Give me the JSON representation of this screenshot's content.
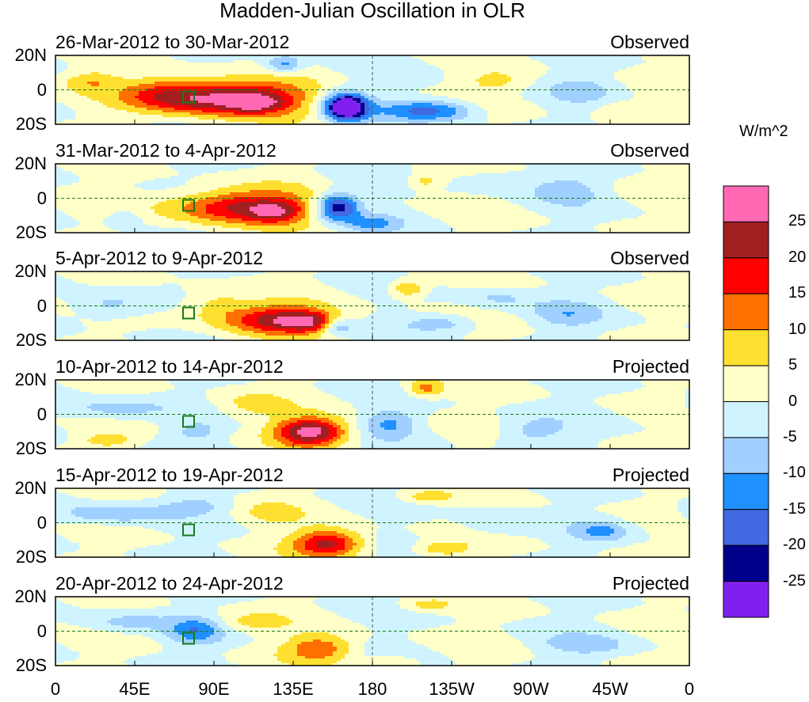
{
  "chart_data": {
    "type": "heatmap",
    "title": "Madden-Julian Oscillation in OLR",
    "units": "W/m^2",
    "xlabel": "",
    "ylabel": "",
    "x_ticks": [
      "0",
      "45E",
      "90E",
      "135E",
      "180",
      "135W",
      "90W",
      "45W",
      "0"
    ],
    "y_ticks": [
      "20N",
      "0",
      "20S"
    ],
    "xlim": [
      0,
      360
    ],
    "ylim": [
      -20,
      20
    ],
    "levels": [
      -25,
      -20,
      -15,
      -10,
      -5,
      0,
      5,
      10,
      15,
      20,
      25
    ],
    "colorbar_labels": [
      "25",
      "20",
      "15",
      "10",
      "5",
      "0",
      "-5",
      "-10",
      "-15",
      "-20",
      "-25"
    ],
    "colors": [
      "#8020F0",
      "#00008B",
      "#4169E1",
      "#1E90FF",
      "#A0D0FF",
      "#D0F4FF",
      "#FFFFC8",
      "#FFE030",
      "#FF7000",
      "#FF0000",
      "#A02020",
      "#FF69B4"
    ],
    "panels": [
      {
        "dates": "26-Mar-2012 to 30-Mar-2012",
        "status": "Observed",
        "anomalies": [
          [
            100,
            -5,
            28,
            40,
            10
          ],
          [
            115,
            -8,
            10,
            15,
            5
          ],
          [
            60,
            -2,
            12,
            25,
            10
          ],
          [
            165,
            -10,
            -38,
            12,
            8
          ],
          [
            130,
            15,
            -12,
            10,
            5
          ],
          [
            220,
            -12,
            -12,
            20,
            6
          ],
          [
            200,
            -12,
            -8,
            20,
            6
          ],
          [
            250,
            5,
            6,
            20,
            6
          ],
          [
            300,
            0,
            -6,
            20,
            8
          ],
          [
            320,
            -10,
            4,
            15,
            5
          ],
          [
            20,
            5,
            8,
            15,
            6
          ]
        ]
      },
      {
        "dates": "31-Mar-2012 to 4-Apr-2012",
        "status": "Observed",
        "anomalies": [
          [
            105,
            -5,
            22,
            40,
            10
          ],
          [
            125,
            -8,
            12,
            15,
            6
          ],
          [
            160,
            -5,
            -25,
            12,
            8
          ],
          [
            210,
            10,
            8,
            10,
            5
          ],
          [
            290,
            5,
            -7,
            20,
            8
          ],
          [
            40,
            -10,
            -5,
            12,
            6
          ],
          [
            180,
            -15,
            -10,
            15,
            5
          ],
          [
            250,
            10,
            -6,
            20,
            6
          ]
        ]
      },
      {
        "dates": "5-Apr-2012 to 9-Apr-2012",
        "status": "Observed",
        "anomalies": [
          [
            130,
            -8,
            25,
            30,
            8
          ],
          [
            145,
            -10,
            10,
            12,
            5
          ],
          [
            90,
            0,
            8,
            20,
            10
          ],
          [
            160,
            -12,
            -12,
            10,
            5
          ],
          [
            30,
            0,
            -8,
            20,
            8
          ],
          [
            200,
            10,
            12,
            10,
            5
          ],
          [
            220,
            -10,
            -8,
            20,
            5
          ],
          [
            290,
            -5,
            -7,
            20,
            8
          ],
          [
            250,
            5,
            -6,
            20,
            6
          ]
        ]
      },
      {
        "dates": "10-Apr-2012 to 14-Apr-2012",
        "status": "Projected",
        "anomalies": [
          [
            145,
            -10,
            28,
            20,
            8
          ],
          [
            110,
            5,
            6,
            20,
            8
          ],
          [
            190,
            -5,
            -10,
            15,
            8
          ],
          [
            210,
            15,
            12,
            10,
            5
          ],
          [
            30,
            3,
            -8,
            30,
            6
          ],
          [
            30,
            -15,
            8,
            15,
            4
          ],
          [
            270,
            -10,
            -7,
            20,
            8
          ],
          [
            80,
            -10,
            -6,
            15,
            6
          ]
        ]
      },
      {
        "dates": "15-Apr-2012 to 19-Apr-2012",
        "status": "Projected",
        "anomalies": [
          [
            155,
            -12,
            22,
            20,
            8
          ],
          [
            120,
            5,
            5,
            20,
            8
          ],
          [
            30,
            5,
            -10,
            30,
            6
          ],
          [
            80,
            10,
            -6,
            20,
            5
          ],
          [
            210,
            15,
            8,
            15,
            4
          ],
          [
            220,
            -15,
            10,
            15,
            4
          ],
          [
            310,
            -5,
            -10,
            15,
            6
          ],
          [
            250,
            0,
            -5,
            20,
            8
          ]
        ]
      },
      {
        "dates": "20-Apr-2012 to 24-Apr-2012",
        "status": "Projected",
        "anomalies": [
          [
            150,
            -10,
            14,
            20,
            8
          ],
          [
            80,
            0,
            -12,
            15,
            8
          ],
          [
            40,
            5,
            -7,
            25,
            6
          ],
          [
            210,
            15,
            7,
            15,
            4
          ],
          [
            300,
            -8,
            -7,
            25,
            6
          ],
          [
            110,
            5,
            6,
            20,
            6
          ],
          [
            190,
            -18,
            7,
            15,
            4
          ]
        ]
      }
    ]
  }
}
